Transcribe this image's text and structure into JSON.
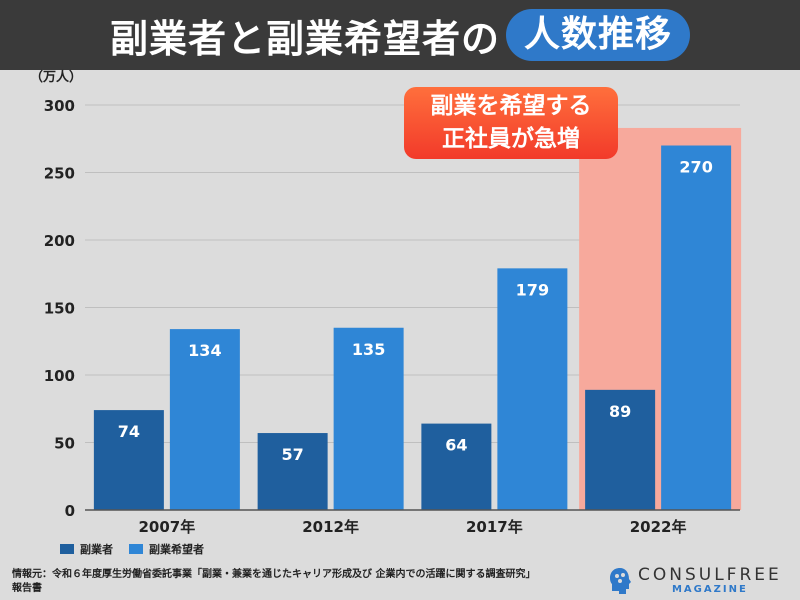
{
  "header": {
    "title_main": "副業者と副業希望者の",
    "title_highlight": "人数推移"
  },
  "unit_label": "（万人）",
  "callout": {
    "line1": "副業を希望する",
    "line2": "正社員が急増"
  },
  "legend": {
    "items": [
      {
        "label": "副業者",
        "color": "#1f5f9e"
      },
      {
        "label": "副業希望者",
        "color": "#2f86d6"
      }
    ]
  },
  "source": "情報元：令和６年度厚生労働省委託事業「副業・兼業を通じたキャリア形成及び 企業内での活躍に関する調査研究」報告書",
  "brand": {
    "name": "CONSULFREE",
    "sub": "MAGAZINE"
  },
  "chart_data": {
    "type": "bar",
    "categories": [
      "2007年",
      "2012年",
      "2017年",
      "2022年"
    ],
    "series": [
      {
        "name": "副業者",
        "values": [
          74,
          57,
          64,
          89
        ],
        "color": "#1f5f9e"
      },
      {
        "name": "副業希望者",
        "values": [
          134,
          135,
          179,
          270
        ],
        "color": "#2f86d6"
      }
    ],
    "ylim": [
      0,
      300
    ],
    "yticks": [
      0,
      50,
      100,
      150,
      200,
      250,
      300
    ],
    "grid": true,
    "highlight_category": "2022年",
    "highlight_color": "#f7a99c"
  }
}
